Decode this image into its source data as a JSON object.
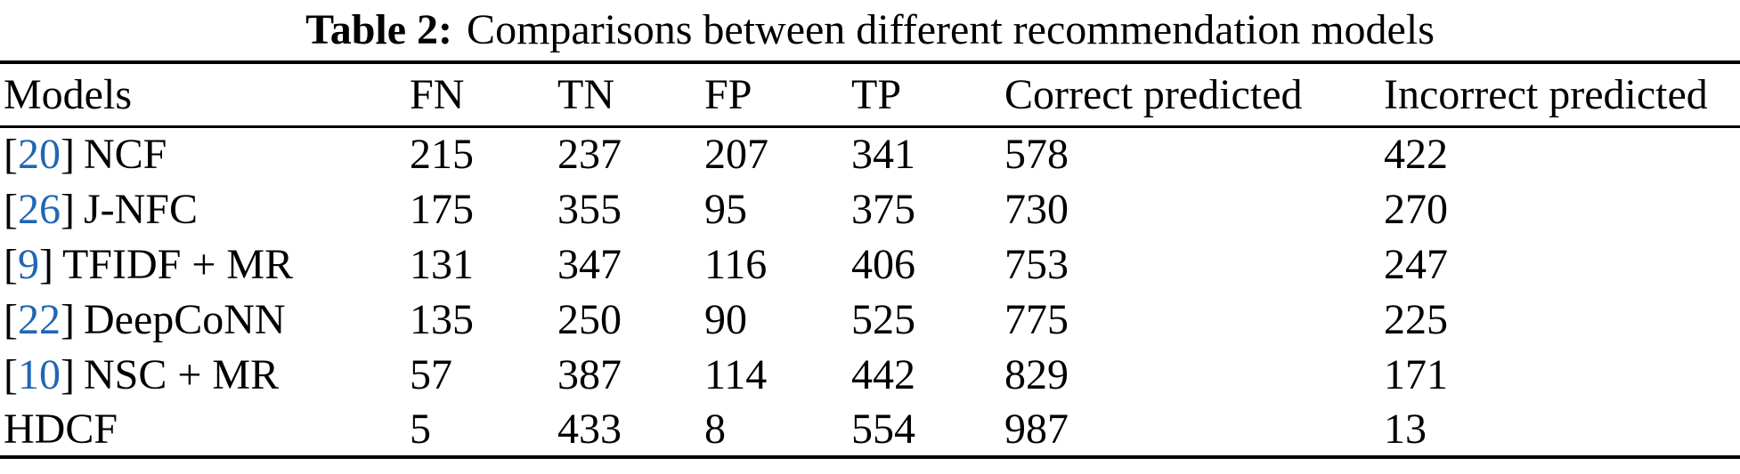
{
  "caption": {
    "label": "Table 2:",
    "text": "Comparisons between different recommendation models"
  },
  "colors": {
    "citation_blue": "#2066B4",
    "text": "#000000",
    "rule": "#000000"
  },
  "citation_brackets": {
    "open": "[",
    "close": "]"
  },
  "table": {
    "columns": [
      "Models",
      "FN",
      "TN",
      "FP",
      "TP",
      "Correct predicted",
      "Incorrect predicted"
    ],
    "rows": [
      {
        "ref": "20",
        "model": "NCF",
        "values": [
          "215",
          "237",
          "207",
          "341",
          "578",
          "422"
        ]
      },
      {
        "ref": "26",
        "model": "J-NFC",
        "values": [
          "175",
          "355",
          "95",
          "375",
          "730",
          "270"
        ]
      },
      {
        "ref": "9",
        "model": "TFIDF + MR",
        "values": [
          "131",
          "347",
          "116",
          "406",
          "753",
          "247"
        ]
      },
      {
        "ref": "22",
        "model": "DeepCoNN",
        "values": [
          "135",
          "250",
          "90",
          "525",
          "775",
          "225"
        ]
      },
      {
        "ref": "10",
        "model": "NSC + MR",
        "values": [
          "57",
          "387",
          "114",
          "442",
          "829",
          "171"
        ]
      },
      {
        "ref": null,
        "model": "HDCF",
        "values": [
          "5",
          "433",
          "8",
          "554",
          "987",
          "13"
        ]
      }
    ]
  }
}
